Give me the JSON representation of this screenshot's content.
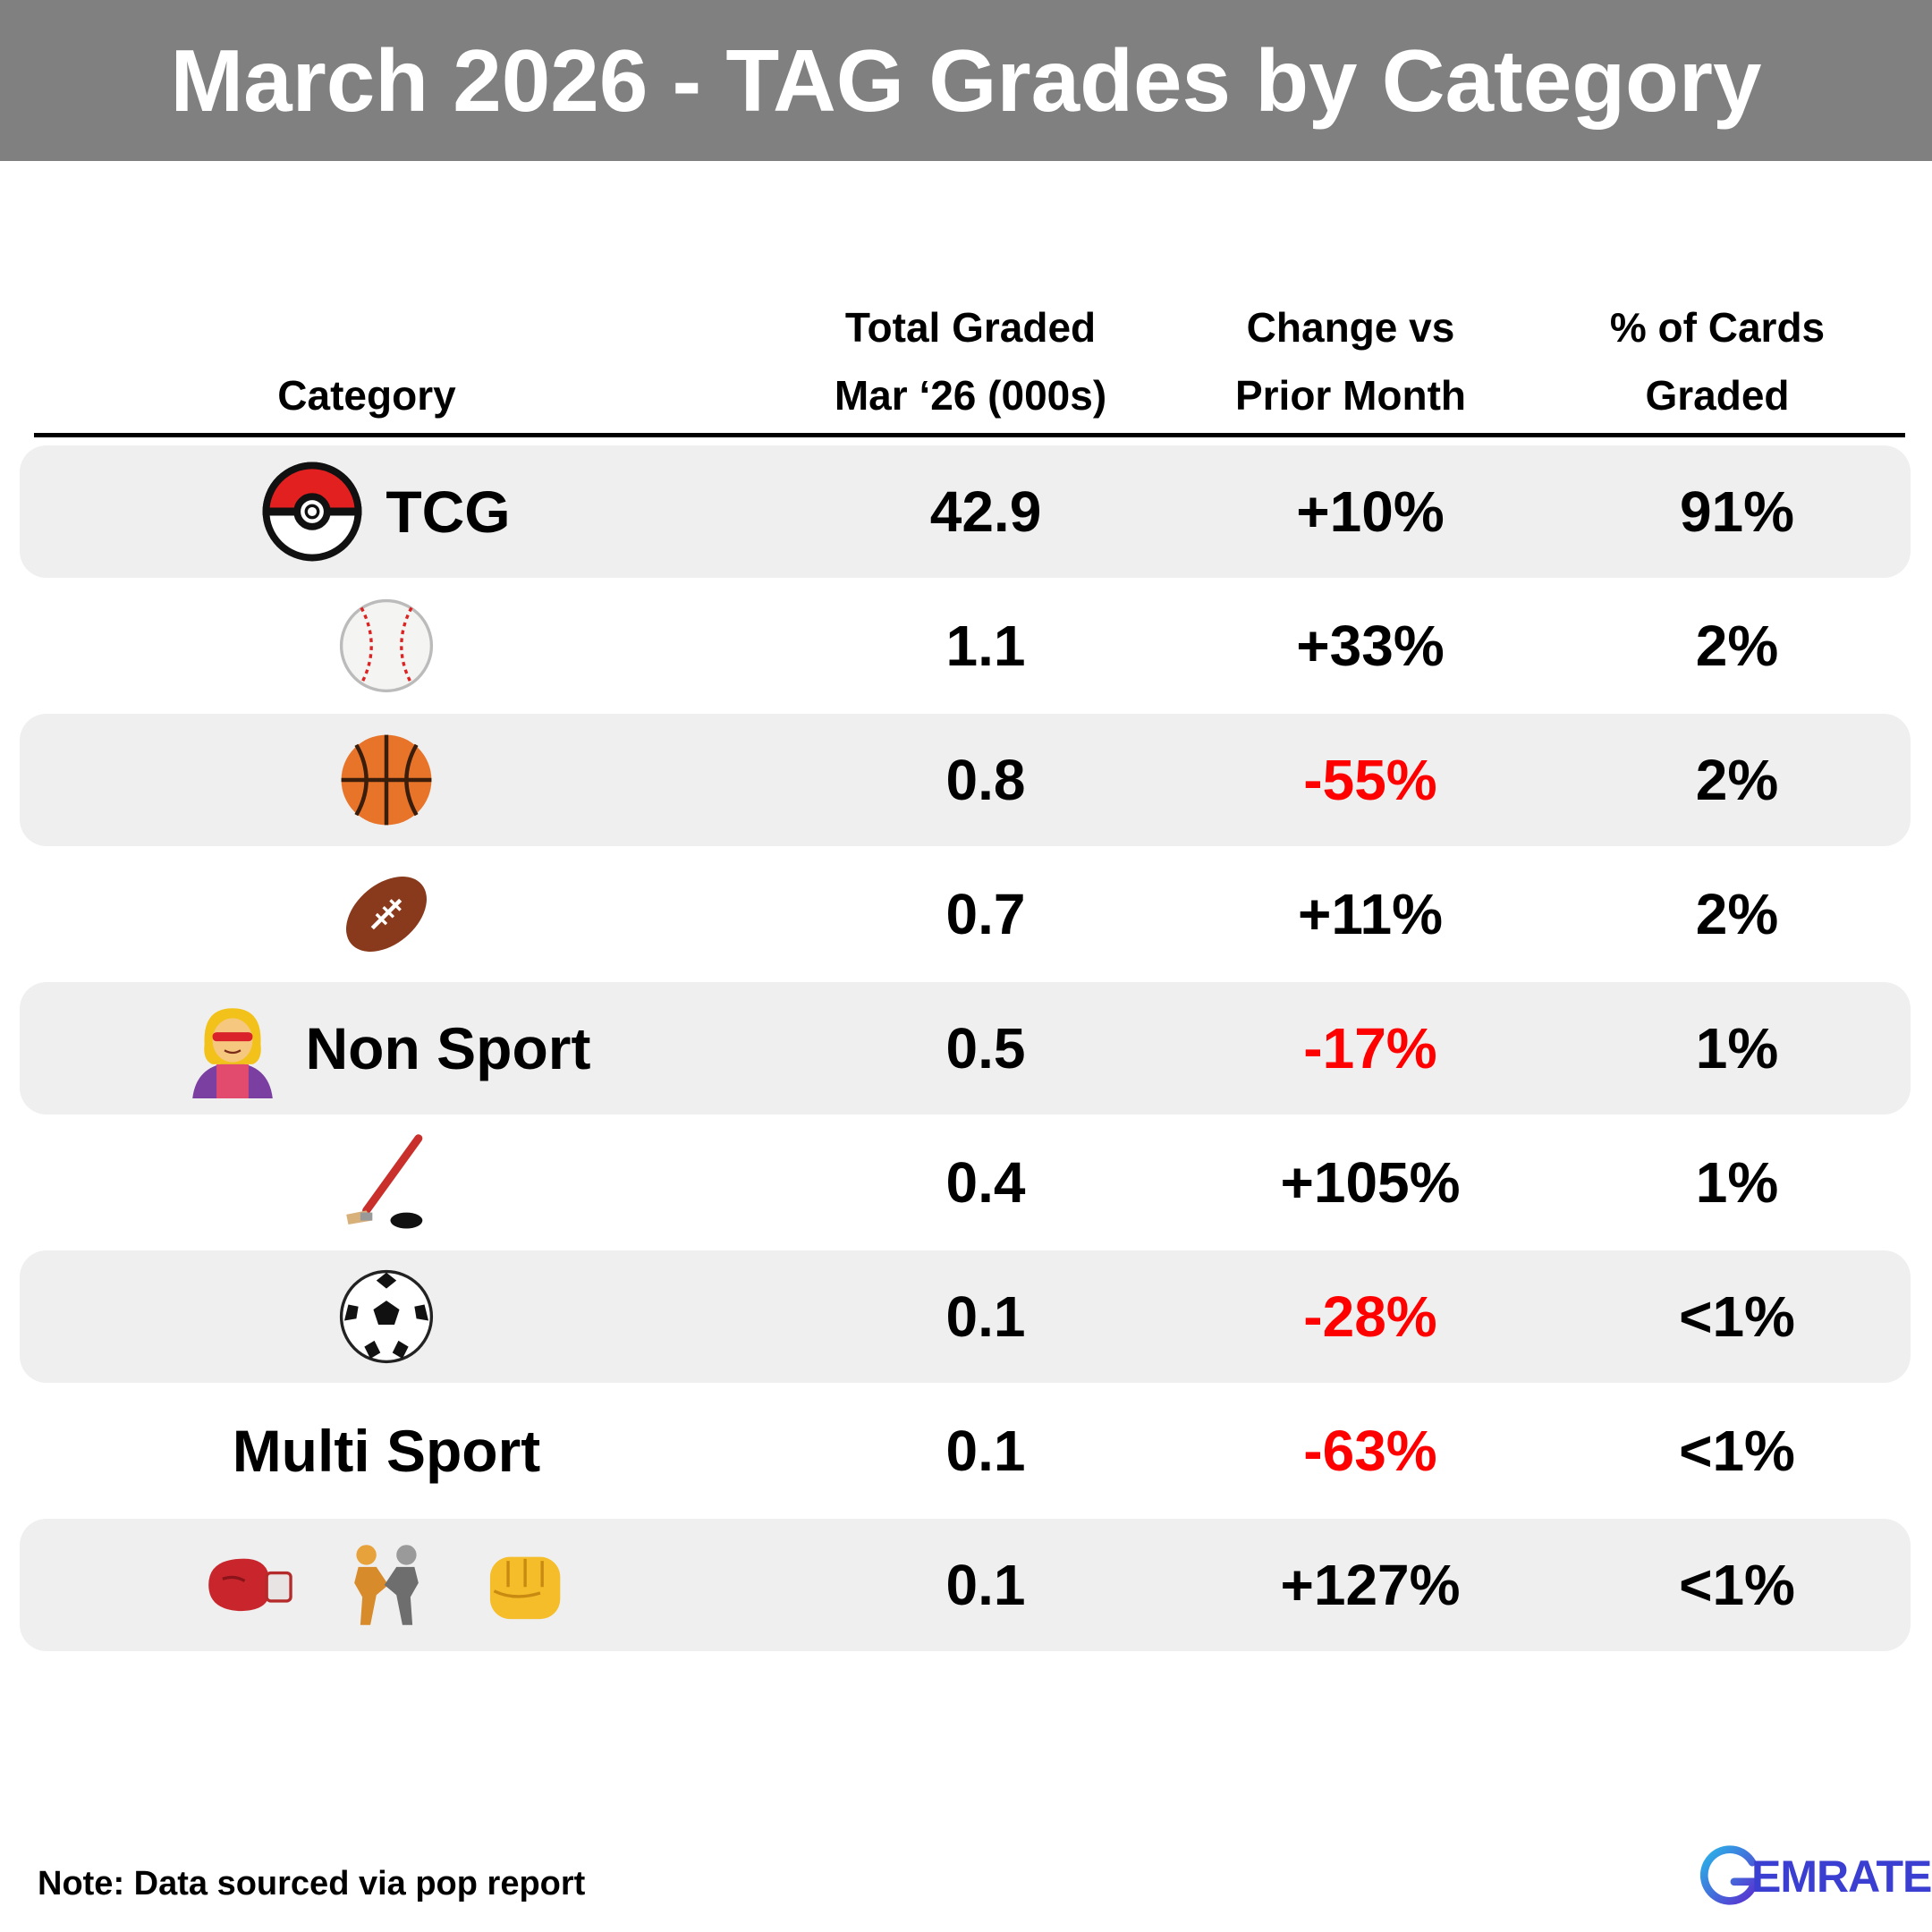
{
  "title": "March 2026 - TAG Grades by Category",
  "headers": {
    "category": "Category",
    "total_line1": "Total Graded",
    "total_line2": "Mar ‘26 (000s)",
    "change_line1": "Change vs",
    "change_line2": "Prior Month",
    "pct_line1": "% of Cards",
    "pct_line2": "Graded"
  },
  "colors": {
    "banner": "#808080",
    "negative": "#ff0000",
    "positive": "#000000",
    "row_shade": "#efefef",
    "logo": "#3b3fd1"
  },
  "rows": [
    {
      "category": "TCG",
      "icons": [
        "pokeball-icon"
      ],
      "total": "42.9",
      "change": "+10%",
      "pct": "91%"
    },
    {
      "category": "",
      "icons": [
        "baseball-icon"
      ],
      "total": "1.1",
      "change": "+33%",
      "pct": "2%"
    },
    {
      "category": "",
      "icons": [
        "basketball-icon"
      ],
      "total": "0.8",
      "change": "-55%",
      "pct": "2%"
    },
    {
      "category": "",
      "icons": [
        "football-icon"
      ],
      "total": "0.7",
      "change": "+11%",
      "pct": "2%"
    },
    {
      "category": "Non Sport",
      "icons": [
        "superhero-icon"
      ],
      "total": "0.5",
      "change": "-17%",
      "pct": "1%"
    },
    {
      "category": "",
      "icons": [
        "hockey-icon"
      ],
      "total": "0.4",
      "change": "+105%",
      "pct": "1%"
    },
    {
      "category": "",
      "icons": [
        "soccer-ball-icon"
      ],
      "total": "0.1",
      "change": "-28%",
      "pct": "<1%"
    },
    {
      "category": "Multi Sport",
      "icons": [],
      "total": "0.1",
      "change": "-63%",
      "pct": "<1%"
    },
    {
      "category": "",
      "icons": [
        "boxing-glove-icon",
        "wrestlers-icon",
        "fist-icon"
      ],
      "total": "0.1",
      "change": "+127%",
      "pct": "<1%"
    }
  ],
  "chart_data": {
    "type": "table",
    "title": "March 2026 - TAG Grades by Category",
    "columns": [
      "Category",
      "Total Graded Mar ‘26 (000s)",
      "Change vs Prior Month",
      "% of Cards Graded"
    ],
    "rows": [
      [
        "TCG",
        42.9,
        "+10%",
        "91%"
      ],
      [
        "baseball",
        1.1,
        "+33%",
        "2%"
      ],
      [
        "basketball",
        0.8,
        "-55%",
        "2%"
      ],
      [
        "football",
        0.7,
        "+11%",
        "2%"
      ],
      [
        "Non Sport",
        0.5,
        "-17%",
        "1%"
      ],
      [
        "hockey",
        0.4,
        "+105%",
        "1%"
      ],
      [
        "soccer",
        0.1,
        "-28%",
        "<1%"
      ],
      [
        "Multi Sport",
        0.1,
        "-63%",
        "<1%"
      ],
      [
        "boxing / wrestling / fighting",
        0.1,
        "+127%",
        "<1%"
      ]
    ]
  },
  "footer": {
    "note": "Note: Data sourced via pop report",
    "logo_text": "EMRATE"
  }
}
